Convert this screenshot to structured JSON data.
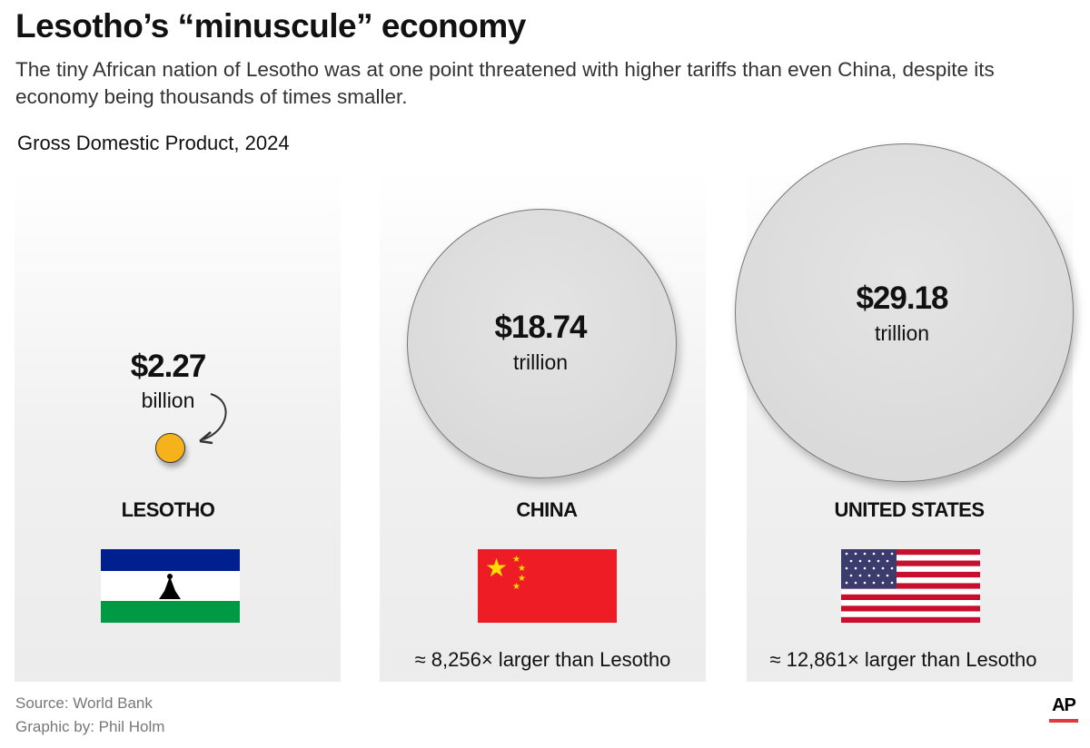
{
  "title": "Lesotho’s “minuscule” economy",
  "subtitle": "The tiny African nation of Lesotho was at one point threatened with higher tariffs than even China, despite its economy being thousands of times smaller.",
  "chart_data": {
    "type": "bubble",
    "title": "Gross Domestic Product, 2024",
    "categories": [
      "LESOTHO",
      "CHINA",
      "UNITED STATES"
    ],
    "values_usd": [
      2270000000.0,
      18740000000000.0,
      29180000000000.0
    ],
    "value_labels": [
      "$2.27",
      "$18.74",
      "$29.18"
    ],
    "unit_labels": [
      "billion",
      "trillion",
      "trillion"
    ],
    "comparisons": [
      "",
      "≈ 8,256× larger than Lesotho",
      "≈ 12,861× larger than Lesotho"
    ],
    "colors": {
      "lesotho": "#f5b21b",
      "others": "#dadada"
    }
  },
  "source": "Source: World Bank",
  "credit": "Graphic by: Phil Holm",
  "logo": "AP"
}
